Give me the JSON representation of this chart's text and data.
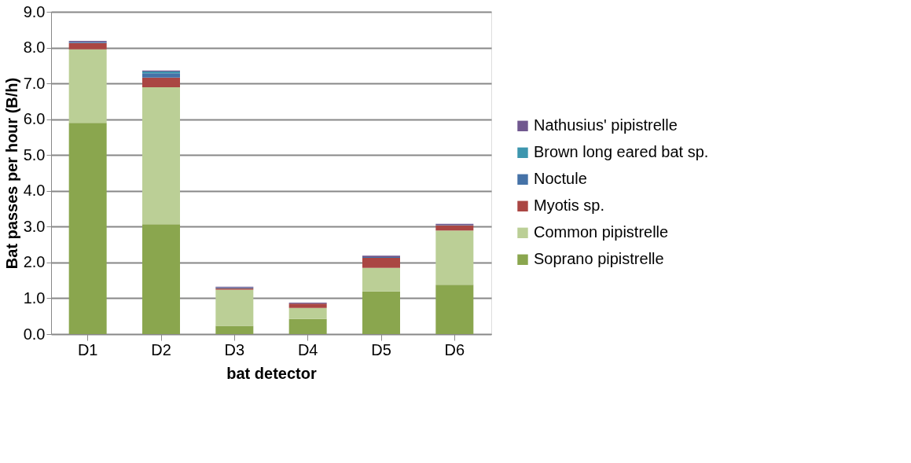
{
  "chart_data": {
    "type": "bar",
    "stacked": true,
    "xlabel": "bat detector",
    "ylabel": "Bat passes per hour (B/h)",
    "categories": [
      "D1",
      "D2",
      "D3",
      "D4",
      "D5",
      "D6"
    ],
    "series": [
      {
        "name": "Soprano pipistrelle",
        "color": "#8aa64e",
        "values": [
          5.9,
          3.07,
          0.23,
          0.42,
          1.19,
          1.38
        ]
      },
      {
        "name": "Common pipistrelle",
        "color": "#bbcf96",
        "values": [
          2.05,
          3.82,
          1.01,
          0.31,
          0.66,
          1.51
        ]
      },
      {
        "name": "Myotis sp.",
        "color": "#aa4643",
        "values": [
          0.18,
          0.27,
          0.04,
          0.12,
          0.28,
          0.15
        ]
      },
      {
        "name": "Noctule",
        "color": "#4572a7",
        "values": [
          0.03,
          0.12,
          0.02,
          null,
          0.02,
          0.01
        ]
      },
      {
        "name": "Brown long eared bat sp.",
        "color": "#3d96ae",
        "values": [
          0,
          0.05,
          0,
          0,
          0,
          0
        ]
      },
      {
        "name": "Nathusius' pipistrelle",
        "color": "#71588f",
        "values": [
          0.03,
          0.03,
          0.02,
          0.03,
          0.04,
          0.03
        ]
      }
    ],
    "ylim": [
      0,
      9
    ],
    "yticks": [
      {
        "value": 0,
        "label": "0.0"
      },
      {
        "value": 1,
        "label": "1.0"
      },
      {
        "value": 2,
        "label": "2.0"
      },
      {
        "value": 3,
        "label": "3.0"
      },
      {
        "value": 4,
        "label": "4.0"
      },
      {
        "value": 5,
        "label": "5.0"
      },
      {
        "value": 6,
        "label": "6.0"
      },
      {
        "value": 7,
        "label": "7.0"
      },
      {
        "value": 8,
        "label": "8.0"
      },
      {
        "value": 9,
        "label": "9.0"
      }
    ],
    "grid": "y",
    "legend": "right"
  }
}
